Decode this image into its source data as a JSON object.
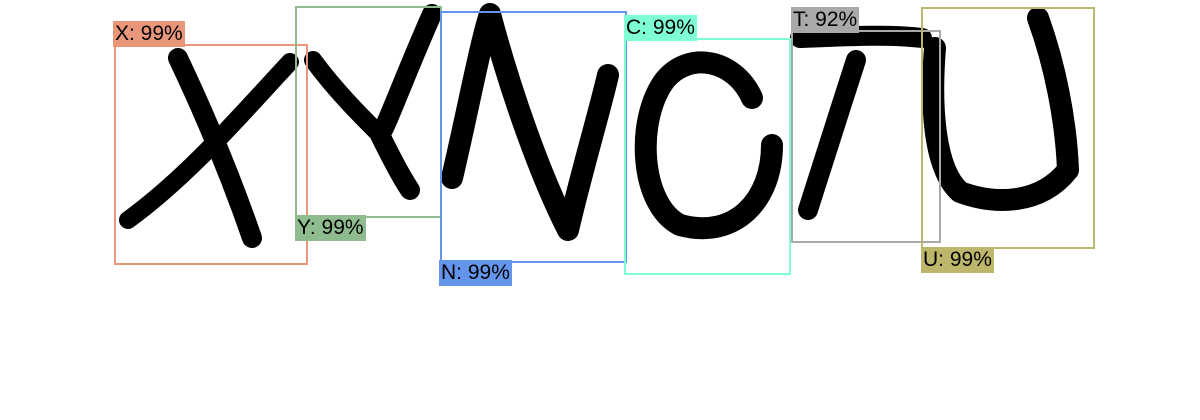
{
  "detections": [
    {
      "label": "X: 99%",
      "color": "#E9967A"
    },
    {
      "label": "Y: 99%",
      "color": "#8FBC8F"
    },
    {
      "label": "N: 99%",
      "color": "#6495ED"
    },
    {
      "label": "C: 99%",
      "color": "#7FFFD4"
    },
    {
      "label": "T: 92%",
      "color": "#A9A9A9"
    },
    {
      "label": "U: 99%",
      "color": "#BDB76B"
    }
  ]
}
